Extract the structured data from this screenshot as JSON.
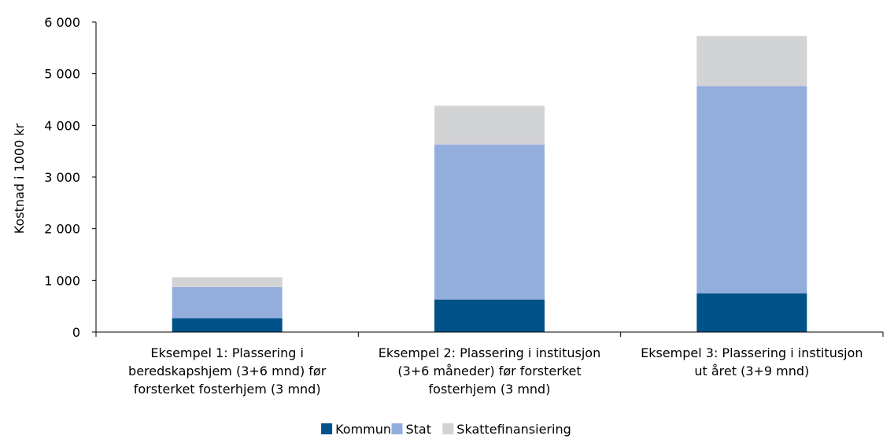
{
  "chart_data": {
    "type": "bar",
    "stacked": true,
    "title": "",
    "xlabel": "",
    "ylabel": "Kostnad i 1000 kr",
    "ylim": [
      0,
      6000
    ],
    "yticks": [
      0,
      1000,
      2000,
      3000,
      4000,
      5000,
      6000
    ],
    "ytick_labels": [
      "0",
      "1 000",
      "2 000",
      "3 000",
      "4 000",
      "5 000",
      "6 000"
    ],
    "grid": false,
    "legend": "bottom",
    "categories": [
      "Eksempel 1: Plassering i beredskapshjem (3+6 mnd) før forsterket fosterhjem (3 mnd)",
      "Eksempel 2: Plassering i institusjon (3+6 måneder) før forsterket fosterhjem (3 mnd)",
      "Eksempel 3: Plassering i institusjon ut året (3+9 mnd)"
    ],
    "category_lines": [
      [
        "Eksempel 1: Plassering i",
        "beredskapshjem (3+6 mnd) før",
        "forsterket fosterhjem (3 mnd)"
      ],
      [
        "Eksempel 2: Plassering i institusjon",
        "(3+6 måneder) før forsterket",
        "fosterhjem (3 mnd)"
      ],
      [
        "Eksempel 3: Plassering i institusjon",
        "ut året (3+9 mnd)"
      ]
    ],
    "series": [
      {
        "name": "Kommune",
        "color": "#005288",
        "values": [
          270,
          630,
          750
        ]
      },
      {
        "name": "Stat",
        "color": "#93AEDD",
        "values": [
          600,
          3000,
          4010
        ]
      },
      {
        "name": "Skattefinansiering",
        "color": "#D2D3D5",
        "values": [
          190,
          750,
          970
        ]
      }
    ]
  }
}
